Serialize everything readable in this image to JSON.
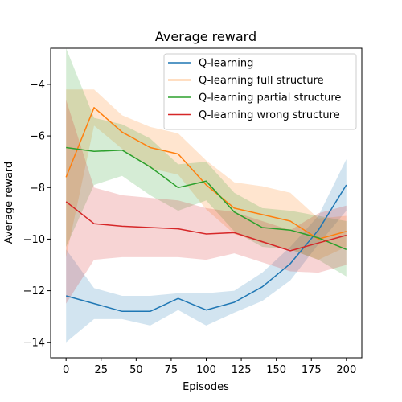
{
  "chart_data": {
    "type": "line",
    "title": "Average reward",
    "xlabel": "Episodes",
    "ylabel": "Average reward",
    "xlim": [
      -11,
      211
    ],
    "ylim": [
      -14.6,
      -2.6
    ],
    "xticks": [
      0,
      25,
      50,
      75,
      100,
      125,
      150,
      175,
      200
    ],
    "yticks": [
      -14,
      -12,
      -10,
      -8,
      -6,
      -4
    ],
    "grid": false,
    "legend_position": "top-right",
    "x": [
      0,
      20,
      40,
      60,
      80,
      100,
      120,
      140,
      160,
      180,
      200
    ],
    "series": [
      {
        "name": "Q-learning",
        "color": "#1f77b4",
        "values": [
          -12.2,
          -12.5,
          -12.8,
          -12.8,
          -12.3,
          -12.75,
          -12.45,
          -11.85,
          -10.95,
          -9.65,
          -7.9
        ],
        "upper": [
          -10.4,
          -11.9,
          -12.2,
          -12.2,
          -12.1,
          -12.1,
          -12.0,
          -11.3,
          -10.3,
          -9.1,
          -6.9
        ],
        "lower": [
          -14.0,
          -13.1,
          -13.1,
          -13.35,
          -12.75,
          -13.35,
          -12.85,
          -12.4,
          -11.6,
          -10.2,
          -8.9
        ]
      },
      {
        "name": "Q-learning full structure",
        "color": "#ff7f0e",
        "values": [
          -7.6,
          -4.9,
          -5.85,
          -6.45,
          -6.7,
          -7.9,
          -8.8,
          -9.05,
          -9.3,
          -10.0,
          -9.7
        ],
        "upper": [
          -4.2,
          -4.2,
          -5.2,
          -5.65,
          -5.9,
          -6.95,
          -7.8,
          -7.95,
          -8.2,
          -9.2,
          -9.1
        ],
        "lower": [
          -10.7,
          -5.6,
          -6.5,
          -7.25,
          -7.5,
          -8.85,
          -9.8,
          -10.15,
          -10.4,
          -10.8,
          -10.3
        ]
      },
      {
        "name": "Q-learning partial structure",
        "color": "#2ca02c",
        "values": [
          -6.45,
          -6.6,
          -6.55,
          -7.2,
          -8.0,
          -7.75,
          -8.95,
          -9.55,
          -9.65,
          -9.95,
          -10.4
        ],
        "upper": [
          -2.6,
          -5.3,
          -5.55,
          -6.1,
          -7.1,
          -7.0,
          -8.2,
          -8.8,
          -8.9,
          -9.1,
          -9.3
        ],
        "lower": [
          -10.3,
          -7.9,
          -7.55,
          -8.3,
          -8.9,
          -8.5,
          -9.7,
          -10.3,
          -10.4,
          -10.8,
          -11.45
        ]
      },
      {
        "name": "Q-learning wrong structure",
        "color": "#d62728",
        "values": [
          -8.55,
          -9.4,
          -9.5,
          -9.55,
          -9.6,
          -9.8,
          -9.75,
          -10.1,
          -10.45,
          -10.15,
          -9.85
        ],
        "upper": [
          -4.6,
          -8.0,
          -8.3,
          -8.4,
          -8.5,
          -8.8,
          -8.95,
          -9.3,
          -9.65,
          -9.0,
          -8.7
        ],
        "lower": [
          -12.5,
          -10.8,
          -10.7,
          -10.7,
          -10.7,
          -10.8,
          -10.55,
          -10.9,
          -11.25,
          -11.3,
          -11.0
        ]
      }
    ]
  }
}
